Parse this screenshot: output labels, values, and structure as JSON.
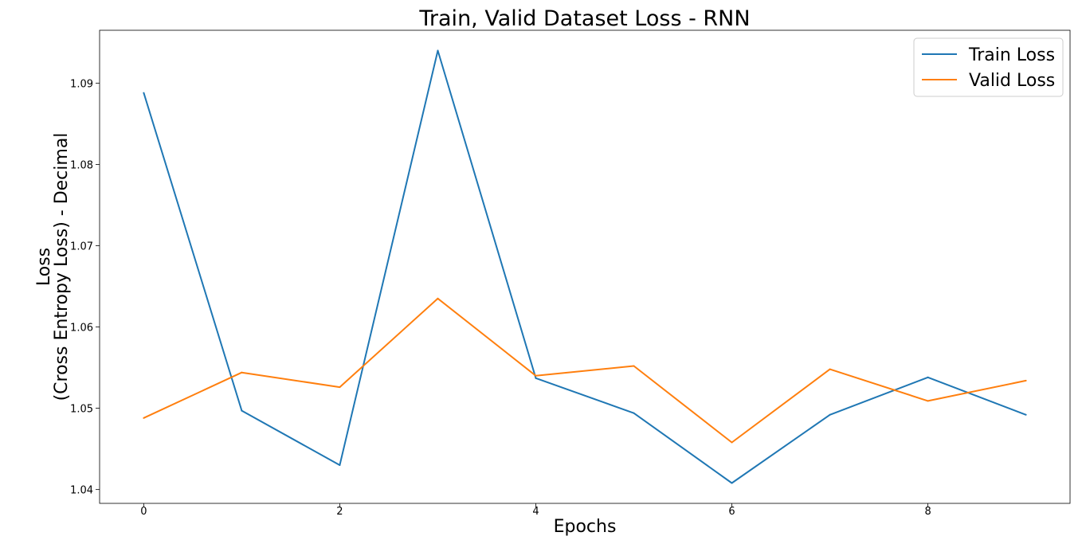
{
  "chart_data": {
    "type": "line",
    "title": "Train, Valid Dataset Loss - RNN",
    "xlabel": "Epochs",
    "ylabel_line1": "Loss",
    "ylabel_line2": "(Cross Entropy Loss) - Decimal",
    "x": [
      0,
      1,
      2,
      3,
      4,
      5,
      6,
      7,
      8,
      9
    ],
    "xlim": [
      -0.45,
      9.45
    ],
    "ylim": [
      1.0383,
      1.0965
    ],
    "xticks": [
      0,
      2,
      4,
      6,
      8
    ],
    "yticks": [
      1.04,
      1.05,
      1.06,
      1.07,
      1.08,
      1.09
    ],
    "xtick_labels": [
      "0",
      "2",
      "4",
      "6",
      "8"
    ],
    "ytick_labels": [
      "1.04",
      "1.05",
      "1.06",
      "1.07",
      "1.08",
      "1.09"
    ],
    "grid": false,
    "legend_position": "top-right",
    "series": [
      {
        "name": "Train Loss",
        "color": "#1f77b4",
        "values": [
          1.0888,
          1.0497,
          1.043,
          1.094,
          1.0537,
          1.0494,
          1.0408,
          1.0492,
          1.0538,
          1.0492
        ]
      },
      {
        "name": "Valid Loss",
        "color": "#ff7f0e",
        "values": [
          1.0488,
          1.0544,
          1.0526,
          1.0635,
          1.054,
          1.0552,
          1.0458,
          1.0548,
          1.0509,
          1.0534
        ]
      }
    ]
  }
}
